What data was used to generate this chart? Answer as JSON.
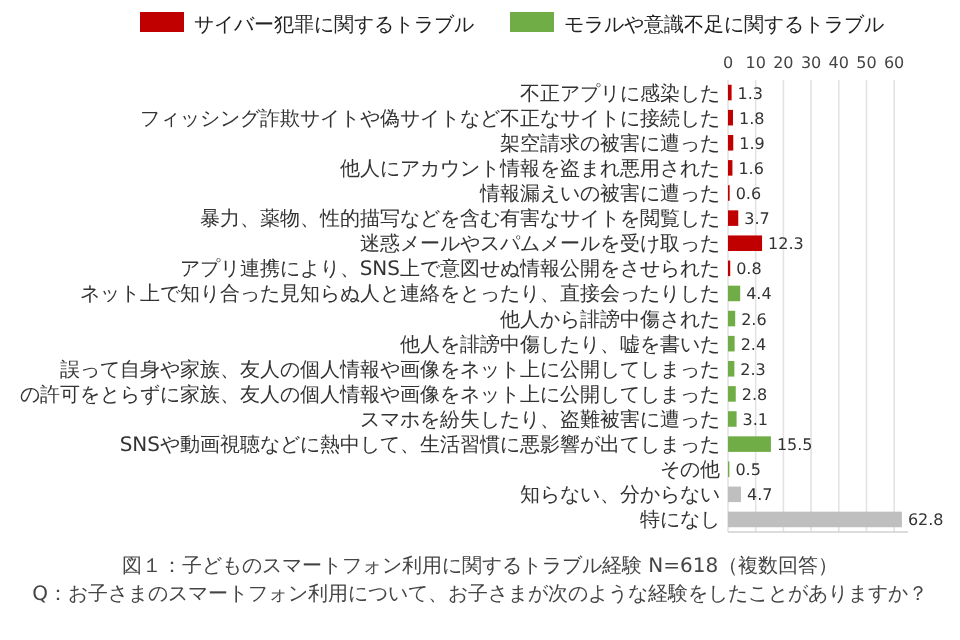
{
  "chart_data": {
    "type": "bar",
    "orientation": "horizontal",
    "categories": [
      "不正アプリに感染した",
      "フィッシング詐欺サイトや偽サイトなど不正なサイトに接続した",
      "架空請求の被害に遭った",
      "他人にアカウント情報を盗まれ悪用された",
      "情報漏えいの被害に遭った",
      "暴力、薬物、性的描写などを含む有害なサイトを閲覧した",
      "迷惑メールやスパムメールを受け取った",
      "アプリ連携により、SNS上で意図せぬ情報公開をさせられた",
      "ネット上で知り合った見知らぬ人と連絡をとったり、直接会ったりした",
      "他人から誹謗中傷された",
      "他人を誹謗中傷したり、嘘を書いた",
      "誤って自身や家族、友人の個人情報や画像をネット上に公開してしまった",
      "の許可をとらずに家族、友人の個人情報や画像をネット上に公開してしまった",
      "スマホを紛失したり、盗難被害に遭った",
      "SNSや動画視聴などに熱中して、生活習慣に悪影響が出てしまった",
      "その他",
      "知らない、分からない",
      "特になし"
    ],
    "series": [
      {
        "name": "サイバー犯罪に関するトラブル",
        "color": "#c00000",
        "values": [
          1.3,
          1.8,
          1.9,
          1.6,
          0.6,
          3.7,
          12.3,
          0.8,
          null,
          null,
          null,
          null,
          null,
          null,
          null,
          null,
          null,
          null
        ]
      },
      {
        "name": "モラルや意識不足に関するトラブル",
        "color": "#70ad47",
        "values": [
          null,
          null,
          null,
          null,
          null,
          null,
          null,
          null,
          4.4,
          2.6,
          2.4,
          2.3,
          2.8,
          3.1,
          15.5,
          0.5,
          null,
          null
        ]
      },
      {
        "color": "#bfbfbf",
        "values": [
          null,
          null,
          null,
          null,
          null,
          null,
          null,
          null,
          null,
          null,
          null,
          null,
          null,
          null,
          null,
          null,
          4.7,
          62.8
        ]
      }
    ],
    "xlim": [
      0,
      65
    ],
    "xticks": [
      0,
      10,
      20,
      30,
      40,
      50,
      60
    ],
    "grid": "x",
    "legend": "top",
    "data_labels": true,
    "annotations": [
      "図１：子どものスマートフォン利用に関するトラブル経験 N=618（複数回答）",
      "Q：お子さまのスマートフォン利用について、お子さまが次のような経験をしたことがありますか？"
    ]
  }
}
